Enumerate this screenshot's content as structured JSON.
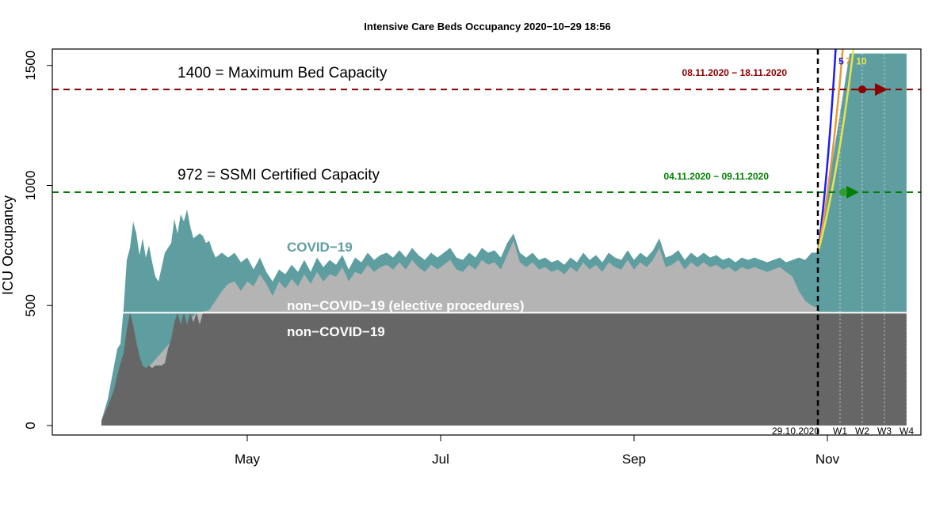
{
  "chart_data": {
    "type": "area",
    "title": "Intensive Care Beds Occupancy 2020−10−29 18:56",
    "ylabel": "ICU Occupancy",
    "xlabel": "",
    "ylim": [
      0,
      1550
    ],
    "ytick_values": [
      0,
      500,
      1000,
      1500
    ],
    "x_tick_labels": [
      "May",
      "Jul",
      "Sep",
      "Nov"
    ],
    "x_tick_days": [
      46,
      107,
      168,
      229
    ],
    "x_range_days": [
      0,
      265
    ],
    "day0_note": "days counted from 16 March 2020",
    "hlines": [
      {
        "value": 1400,
        "label": "1400 = Maximum Bed Capacity",
        "color": "#8b0000",
        "range_label": "08.11.2020 − 18.11.2020",
        "range_days": [
          237,
          247
        ],
        "point_day": 240
      },
      {
        "value": 972,
        "label": "972 = SSMI Certified Capacity",
        "color": "#008000",
        "range_label": "04.11.2020 − 09.11.2020",
        "range_days": [
          233,
          238
        ],
        "point_day": 234
      }
    ],
    "today_day": 226,
    "today_label": "29.10.2020",
    "week_labels": [
      "W1",
      "W2",
      "W3",
      "W4"
    ],
    "week_days": [
      233,
      240,
      247,
      254
    ],
    "forecast_end_day": 254,
    "forecast_base": 470,
    "layers": {
      "covid": {
        "name": "COVID−19",
        "color": "#5f9ea0"
      },
      "elective": {
        "name": "non−COVID−19 (elective procedures)",
        "color": "#b4b4b4"
      },
      "noncovid": {
        "name": "non−COVID−19",
        "color": "#666666"
      }
    },
    "series": [
      {
        "name": "total",
        "points": [
          [
            0,
            20
          ],
          [
            2,
            110
          ],
          [
            4,
            250
          ],
          [
            5,
            320
          ],
          [
            6,
            340
          ],
          [
            7,
            490
          ],
          [
            8,
            690
          ],
          [
            9,
            740
          ],
          [
            10,
            850
          ],
          [
            11,
            800
          ],
          [
            12,
            710
          ],
          [
            13,
            780
          ],
          [
            14,
            700
          ],
          [
            15,
            750
          ],
          [
            16,
            680
          ],
          [
            17,
            620
          ],
          [
            18,
            600
          ],
          [
            19,
            660
          ],
          [
            20,
            720
          ],
          [
            21,
            740
          ],
          [
            22,
            760
          ],
          [
            23,
            860
          ],
          [
            24,
            800
          ],
          [
            25,
            880
          ],
          [
            26,
            850
          ],
          [
            27,
            900
          ],
          [
            28,
            830
          ],
          [
            29,
            780
          ],
          [
            30,
            790
          ],
          [
            31,
            800
          ],
          [
            32,
            790
          ],
          [
            33,
            760
          ],
          [
            34,
            770
          ],
          [
            35,
            730
          ],
          [
            36,
            700
          ],
          [
            38,
            720
          ],
          [
            40,
            700
          ],
          [
            42,
            720
          ],
          [
            44,
            680
          ],
          [
            46,
            700
          ],
          [
            48,
            650
          ],
          [
            50,
            700
          ],
          [
            52,
            640
          ],
          [
            54,
            600
          ],
          [
            56,
            650
          ],
          [
            58,
            630
          ],
          [
            60,
            670
          ],
          [
            62,
            640
          ],
          [
            64,
            690
          ],
          [
            66,
            640
          ],
          [
            68,
            700
          ],
          [
            70,
            660
          ],
          [
            72,
            690
          ],
          [
            74,
            670
          ],
          [
            76,
            710
          ],
          [
            78,
            650
          ],
          [
            80,
            700
          ],
          [
            82,
            680
          ],
          [
            84,
            720
          ],
          [
            86,
            690
          ],
          [
            88,
            710
          ],
          [
            90,
            720
          ],
          [
            92,
            700
          ],
          [
            94,
            730
          ],
          [
            96,
            700
          ],
          [
            98,
            740
          ],
          [
            100,
            710
          ],
          [
            102,
            690
          ],
          [
            104,
            720
          ],
          [
            106,
            700
          ],
          [
            108,
            720
          ],
          [
            110,
            740
          ],
          [
            112,
            700
          ],
          [
            114,
            690
          ],
          [
            116,
            720
          ],
          [
            118,
            700
          ],
          [
            120,
            740
          ],
          [
            122,
            720
          ],
          [
            124,
            730
          ],
          [
            126,
            700
          ],
          [
            128,
            760
          ],
          [
            130,
            800
          ],
          [
            132,
            720
          ],
          [
            134,
            700
          ],
          [
            136,
            720
          ],
          [
            138,
            690
          ],
          [
            140,
            700
          ],
          [
            142,
            680
          ],
          [
            144,
            690
          ],
          [
            146,
            670
          ],
          [
            148,
            700
          ],
          [
            150,
            680
          ],
          [
            152,
            720
          ],
          [
            154,
            690
          ],
          [
            156,
            710
          ],
          [
            158,
            680
          ],
          [
            160,
            720
          ],
          [
            162,
            700
          ],
          [
            164,
            690
          ],
          [
            166,
            730
          ],
          [
            168,
            690
          ],
          [
            170,
            720
          ],
          [
            172,
            700
          ],
          [
            174,
            730
          ],
          [
            176,
            780
          ],
          [
            178,
            700
          ],
          [
            180,
            710
          ],
          [
            182,
            730
          ],
          [
            184,
            690
          ],
          [
            186,
            720
          ],
          [
            188,
            700
          ],
          [
            190,
            720
          ],
          [
            192,
            700
          ],
          [
            194,
            710
          ],
          [
            196,
            690
          ],
          [
            198,
            700
          ],
          [
            200,
            680
          ],
          [
            202,
            700
          ],
          [
            204,
            690
          ],
          [
            206,
            700
          ],
          [
            208,
            690
          ],
          [
            210,
            680
          ],
          [
            212,
            690
          ],
          [
            214,
            700
          ],
          [
            216,
            680
          ],
          [
            218,
            690
          ],
          [
            220,
            700
          ],
          [
            222,
            690
          ],
          [
            224,
            720
          ],
          [
            226,
            720
          ]
        ]
      },
      {
        "name": "non-covid",
        "points": [
          [
            0,
            20
          ],
          [
            2,
            80
          ],
          [
            4,
            150
          ],
          [
            5,
            210
          ],
          [
            6,
            260
          ],
          [
            7,
            300
          ],
          [
            8,
            400
          ],
          [
            9,
            470
          ],
          [
            10,
            420
          ],
          [
            11,
            350
          ],
          [
            12,
            290
          ],
          [
            13,
            250
          ],
          [
            14,
            240
          ],
          [
            15,
            250
          ],
          [
            16,
            240
          ],
          [
            17,
            250
          ],
          [
            18,
            250
          ],
          [
            19,
            250
          ],
          [
            20,
            260
          ],
          [
            21,
            320
          ],
          [
            22,
            360
          ],
          [
            23,
            430
          ],
          [
            24,
            470
          ],
          [
            25,
            420
          ],
          [
            26,
            470
          ],
          [
            27,
            420
          ],
          [
            28,
            470
          ],
          [
            29,
            430
          ],
          [
            30,
            470
          ],
          [
            31,
            420
          ],
          [
            32,
            470
          ],
          [
            34,
            470
          ],
          [
            226,
            470
          ]
        ]
      },
      {
        "name": "elective-top",
        "points": [
          [
            0,
            20
          ],
          [
            30,
            470
          ],
          [
            34,
            480
          ],
          [
            36,
            520
          ],
          [
            38,
            560
          ],
          [
            40,
            590
          ],
          [
            42,
            600
          ],
          [
            44,
            560
          ],
          [
            46,
            600
          ],
          [
            48,
            580
          ],
          [
            50,
            630
          ],
          [
            52,
            590
          ],
          [
            54,
            540
          ],
          [
            56,
            600
          ],
          [
            58,
            570
          ],
          [
            60,
            610
          ],
          [
            62,
            580
          ],
          [
            64,
            630
          ],
          [
            66,
            590
          ],
          [
            68,
            640
          ],
          [
            70,
            600
          ],
          [
            72,
            630
          ],
          [
            74,
            620
          ],
          [
            76,
            660
          ],
          [
            78,
            600
          ],
          [
            80,
            640
          ],
          [
            82,
            630
          ],
          [
            84,
            670
          ],
          [
            86,
            640
          ],
          [
            88,
            660
          ],
          [
            90,
            670
          ],
          [
            92,
            650
          ],
          [
            94,
            680
          ],
          [
            96,
            650
          ],
          [
            98,
            690
          ],
          [
            100,
            660
          ],
          [
            102,
            640
          ],
          [
            104,
            670
          ],
          [
            106,
            650
          ],
          [
            108,
            670
          ],
          [
            110,
            690
          ],
          [
            112,
            650
          ],
          [
            114,
            640
          ],
          [
            116,
            670
          ],
          [
            118,
            650
          ],
          [
            120,
            690
          ],
          [
            122,
            670
          ],
          [
            124,
            680
          ],
          [
            126,
            650
          ],
          [
            128,
            710
          ],
          [
            130,
            770
          ],
          [
            132,
            680
          ],
          [
            134,
            660
          ],
          [
            136,
            680
          ],
          [
            138,
            650
          ],
          [
            140,
            660
          ],
          [
            142,
            640
          ],
          [
            144,
            650
          ],
          [
            146,
            630
          ],
          [
            148,
            660
          ],
          [
            150,
            640
          ],
          [
            152,
            680
          ],
          [
            154,
            650
          ],
          [
            156,
            670
          ],
          [
            158,
            640
          ],
          [
            160,
            680
          ],
          [
            162,
            660
          ],
          [
            164,
            650
          ],
          [
            166,
            690
          ],
          [
            168,
            650
          ],
          [
            170,
            680
          ],
          [
            172,
            660
          ],
          [
            174,
            690
          ],
          [
            176,
            740
          ],
          [
            178,
            660
          ],
          [
            180,
            670
          ],
          [
            182,
            690
          ],
          [
            184,
            650
          ],
          [
            186,
            680
          ],
          [
            188,
            660
          ],
          [
            190,
            680
          ],
          [
            192,
            660
          ],
          [
            194,
            670
          ],
          [
            196,
            650
          ],
          [
            198,
            660
          ],
          [
            200,
            640
          ],
          [
            202,
            660
          ],
          [
            204,
            650
          ],
          [
            206,
            660
          ],
          [
            208,
            650
          ],
          [
            210,
            640
          ],
          [
            212,
            650
          ],
          [
            214,
            660
          ],
          [
            216,
            640
          ],
          [
            218,
            620
          ],
          [
            220,
            560
          ],
          [
            222,
            520
          ],
          [
            224,
            500
          ],
          [
            226,
            490
          ]
        ]
      }
    ],
    "forecast_scenarios": [
      {
        "label": "5",
        "color": "#1a1aff",
        "doubling_days": 5,
        "from_value": 720
      },
      {
        "label": "7",
        "color": "#e69a3c",
        "doubling_days": 7,
        "from_value": 720
      },
      {
        "label": "10",
        "color": "#e6e64d",
        "doubling_days": 10,
        "from_value": 720
      }
    ]
  }
}
